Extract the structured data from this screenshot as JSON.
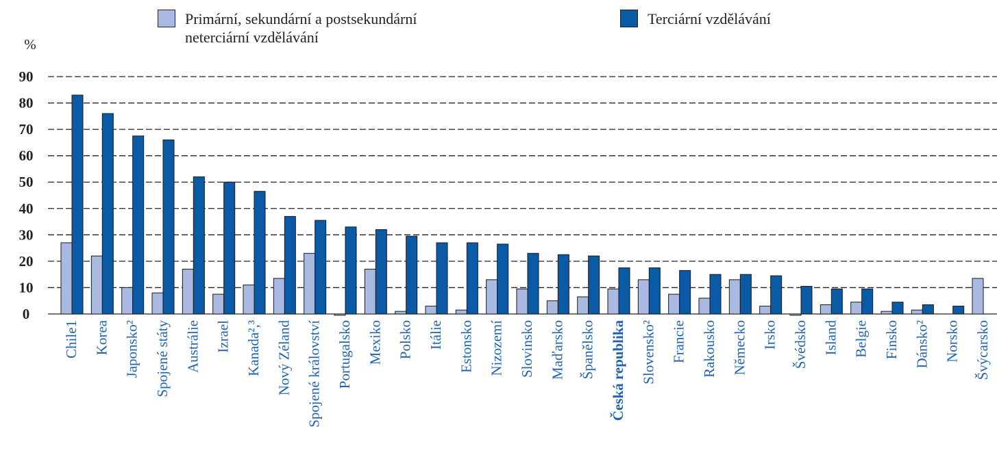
{
  "chart_data": {
    "type": "bar",
    "y_label": "%",
    "categories": [
      "Chile1",
      "Korea",
      "Japonsko²",
      "Spojené státy",
      "Austrálie",
      "Izrael",
      "Kanada²,³",
      "Nový Zéland",
      "Spojené království",
      "Portugalsko",
      "Mexiko",
      "Polsko",
      "Itálie",
      "Estonsko",
      "Nizozemí",
      "Slovinsko",
      "Maďarsko",
      "Španělsko",
      "Česká republika",
      "Slovensko²",
      "Francie",
      "Rakousko",
      "Německo",
      "Irsko",
      "Švédsko",
      "Island",
      "Belgie",
      "Finsko",
      "Dánsko²",
      "Norsko",
      "Švýcarsko"
    ],
    "bold_category_index": 18,
    "series": [
      {
        "name": "Primární, sekundární a postsekundární neterciární vzdělávání",
        "color": "#a9b9e2",
        "values": [
          27,
          22,
          10,
          8,
          17,
          7.5,
          11,
          13.5,
          23,
          -0.5,
          17,
          1,
          3,
          1.5,
          13,
          9.5,
          5,
          6.5,
          9.5,
          13,
          7.5,
          6,
          13,
          3,
          -0.5,
          3.5,
          4.5,
          1,
          1.5,
          null,
          13.5
        ]
      },
      {
        "name": "Terciární vzdělávání",
        "color": "#0b5aa6",
        "values": [
          83,
          76,
          67.5,
          66,
          52,
          50,
          46.5,
          37,
          35.5,
          33,
          32,
          29.5,
          27,
          27,
          26.5,
          23,
          22.5,
          22,
          17.5,
          17.5,
          16.5,
          15,
          15,
          14.5,
          10.5,
          9.5,
          9.5,
          4.5,
          3.5,
          3,
          null
        ]
      }
    ],
    "ylim": [
      0,
      90
    ],
    "yticks": [
      0,
      10,
      20,
      30,
      40,
      50,
      60,
      70,
      80,
      90
    ],
    "grid": true
  }
}
